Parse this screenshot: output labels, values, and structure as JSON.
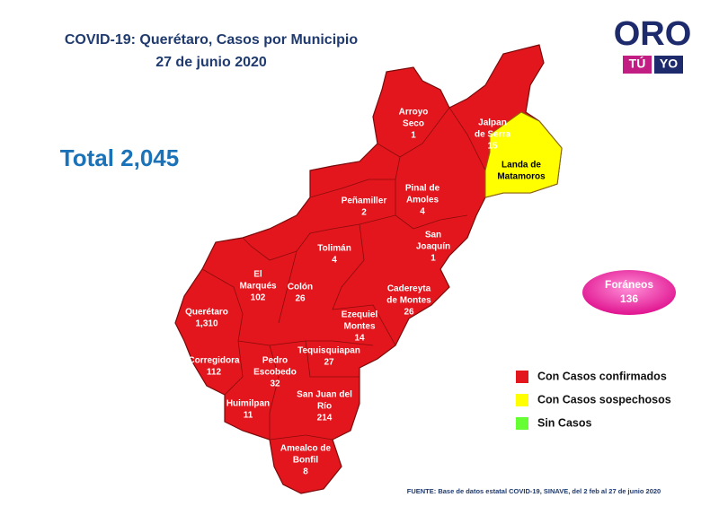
{
  "title": "COVID-19: Querétaro, Casos por Municipio",
  "date": "27 de junio 2020",
  "total": "Total 2,045",
  "logo": {
    "top": "ORO",
    "left": "TÚ",
    "right": "YO"
  },
  "municipios": [
    {
      "name": [
        "Arroyo",
        "Seco"
      ],
      "cases": 1,
      "color": "#e3161d"
    },
    {
      "name": [
        "Jalpan",
        "de Serra"
      ],
      "cases": 15,
      "color": "#e3161d"
    },
    {
      "name": [
        "Landa de",
        "Matamoros"
      ],
      "color": "#ffff00"
    },
    {
      "name": [
        "Peñamiller"
      ],
      "cases": 2,
      "color": "#e3161d"
    },
    {
      "name": [
        "Pinal de",
        "Amoles"
      ],
      "cases": 4,
      "color": "#e3161d"
    },
    {
      "name": [
        "San",
        "Joaquín"
      ],
      "cases": 1,
      "color": "#e3161d"
    },
    {
      "name": [
        "Tolimán"
      ],
      "cases": 4,
      "color": "#e3161d"
    },
    {
      "name": [
        "El",
        "Marqués"
      ],
      "cases": 102,
      "color": "#e3161d"
    },
    {
      "name": [
        "Colón"
      ],
      "cases": 26,
      "color": "#e3161d"
    },
    {
      "name": [
        "Cadereyta",
        "de Montes"
      ],
      "cases": 26,
      "color": "#e3161d"
    },
    {
      "name": [
        "Querétaro"
      ],
      "cases": {
        "value": 1310,
        "label": "1,310"
      },
      "color": "#e3161d"
    },
    {
      "name": [
        "Ezequiel",
        "Montes"
      ],
      "cases": 14,
      "color": "#e3161d"
    },
    {
      "name": [
        "Corregidora"
      ],
      "cases": 112,
      "color": "#e3161d"
    },
    {
      "name": [
        "Pedro",
        "Escobedo"
      ],
      "cases": 32,
      "color": "#e3161d"
    },
    {
      "name": [
        "Tequisquiapan"
      ],
      "cases": 27,
      "color": "#e3161d"
    },
    {
      "name": [
        "Huimilpan"
      ],
      "cases": 11,
      "color": "#e3161d"
    },
    {
      "name": [
        "San Juan del",
        "Río"
      ],
      "cases": 214,
      "color": "#e3161d"
    },
    {
      "name": [
        "Amealco de",
        "Bonfil"
      ],
      "cases": 8,
      "color": "#e3161d"
    }
  ],
  "foraneos": {
    "label": "Foráneos",
    "cases": 136
  },
  "legend": [
    {
      "label": "Con Casos confirmados",
      "color": "#e3161d"
    },
    {
      "label": "Con Casos sospechosos",
      "color": "#ffff00"
    },
    {
      "label": "Sin Casos",
      "color": "#66ff33"
    }
  ],
  "source": "FUENTE: Base de datos estatal COVID-19, SINAVE, del 2 feb al 27 de junio 2020"
}
